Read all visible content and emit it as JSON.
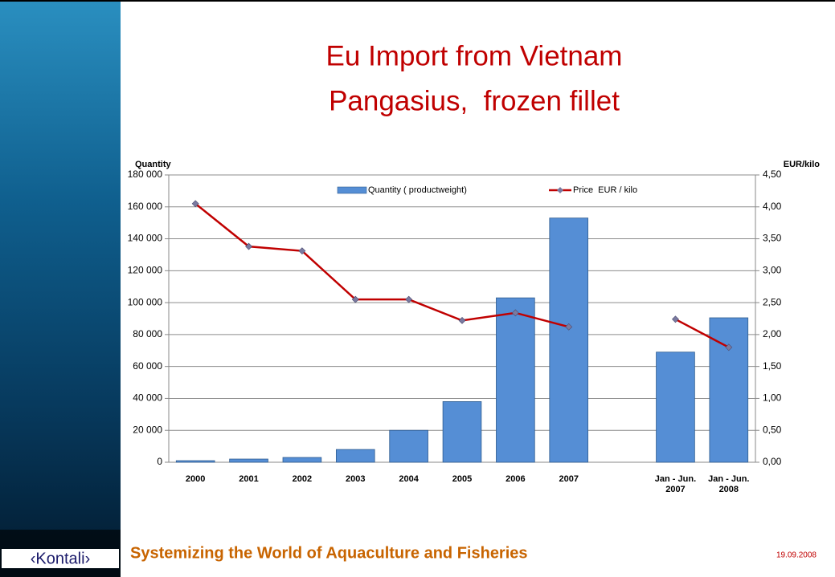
{
  "chart_data": {
    "type": "bar-line",
    "title": "Eu Import from Vietnam",
    "subtitle": "Pangasius,  frozen fillet",
    "y_axis_title": "Quantity",
    "y2_axis_title": "EUR/kilo",
    "categories": [
      "2000",
      "2001",
      "2002",
      "2003",
      "2004",
      "2005",
      "2006",
      "2007",
      null,
      "Jan - Jun. 2007",
      "Jan - Jun. 2008"
    ],
    "series": [
      {
        "name": "Quantity ( productweight)",
        "type": "bar",
        "axis": "y",
        "color": "#558ed5",
        "values": [
          1000,
          2000,
          3000,
          8000,
          20000,
          38000,
          103000,
          153000,
          null,
          69000,
          90500
        ]
      },
      {
        "name": "Price  EUR / kilo",
        "type": "line",
        "axis": "y2",
        "color": "#c00000",
        "values": [
          4.05,
          3.38,
          3.31,
          2.55,
          2.55,
          2.22,
          2.34,
          2.12,
          null,
          2.24,
          1.8
        ]
      }
    ],
    "ylim": [
      0,
      180000
    ],
    "yticks": [
      0,
      {
        "value": 20000,
        "label": "20 000"
      },
      {
        "value": 40000,
        "label": "40 000"
      },
      {
        "value": 60000,
        "label": "60 000"
      },
      {
        "value": 80000,
        "label": "80 000"
      },
      {
        "value": 100000,
        "label": "100 000"
      },
      {
        "value": 120000,
        "label": "120 000"
      },
      {
        "value": 140000,
        "label": "140 000"
      },
      {
        "value": 160000,
        "label": "160 000"
      },
      {
        "value": 180000,
        "label": "180 000"
      }
    ],
    "y2lim": [
      0,
      4.5
    ],
    "y2ticks": [
      {
        "value": 0,
        "label": "0,00"
      },
      {
        "value": 0.5,
        "label": "0,50"
      },
      {
        "value": 1,
        "label": "1,00"
      },
      {
        "value": 1.5,
        "label": "1,50"
      },
      {
        "value": 2,
        "label": "2,00"
      },
      {
        "value": 2.5,
        "label": "2,50"
      },
      {
        "value": 3,
        "label": "3,00"
      },
      {
        "value": 3.5,
        "label": "3,50"
      },
      {
        "value": 4,
        "label": "4,00"
      },
      {
        "value": 4.5,
        "label": "4,50"
      }
    ],
    "grid": true,
    "legend": "top"
  },
  "footer": {
    "logo": "‹Kontali›",
    "tagline": "Systemizing the World of Aquaculture and Fisheries",
    "date": "19.09.2008"
  }
}
